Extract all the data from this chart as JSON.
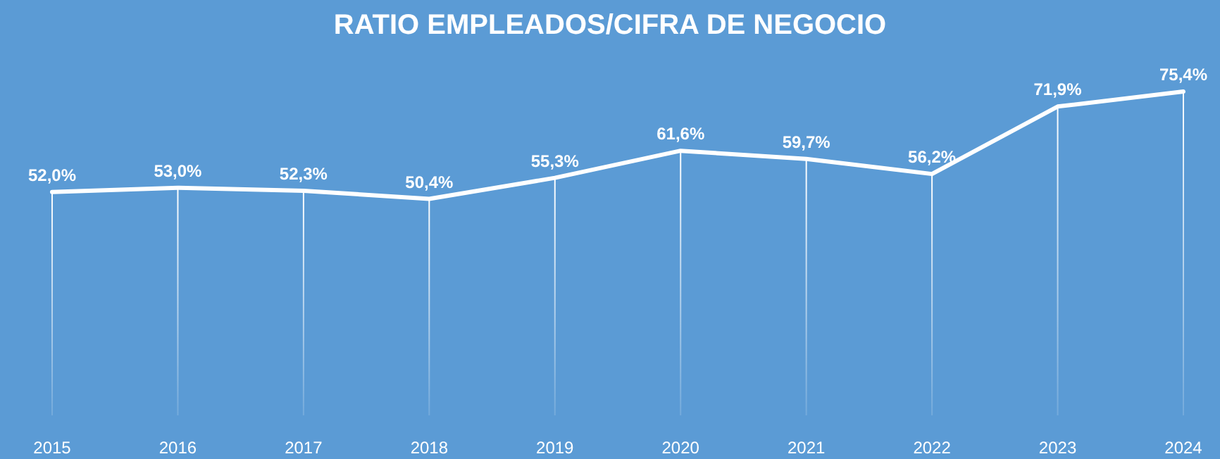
{
  "chart_data": {
    "type": "line",
    "title": "RATIO EMPLEADOS/CIFRA DE NEGOCIO",
    "categories": [
      "2015",
      "2016",
      "2017",
      "2018",
      "2019",
      "2020",
      "2021",
      "2022",
      "2023",
      "2024"
    ],
    "series": [
      {
        "type": "bar",
        "color": "#ffffff",
        "values": [
          52.0,
          53.0,
          52.3,
          50.4,
          55.3,
          61.6,
          59.7,
          56.2,
          71.9,
          75.4
        ]
      },
      {
        "color": "#ffffff",
        "values": [
          52.0,
          53.0,
          52.3,
          50.4,
          55.3,
          61.6,
          59.7,
          56.2,
          71.9,
          75.4
        ],
        "value_labels": [
          "52,0%",
          "53,0%",
          "52,3%",
          "50,4%",
          "55,3%",
          "61,6%",
          "59,7%",
          "56,2%",
          "71,9%",
          "75,4%"
        ]
      }
    ],
    "tick_labels": "x",
    "line_style": "solid"
  }
}
